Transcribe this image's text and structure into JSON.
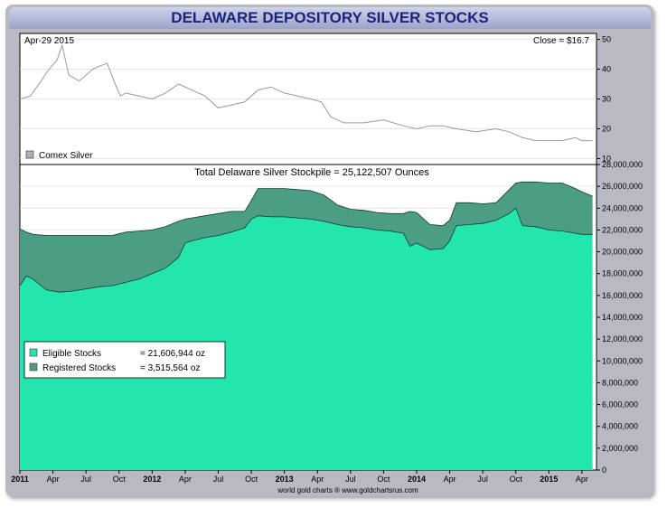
{
  "header": {
    "title": "DELAWARE DEPOSITORY SILVER STOCKS"
  },
  "chart_data": [
    {
      "type": "line",
      "title": "",
      "series": [
        {
          "name": "Comex Silver",
          "color": "#9a9a9a",
          "x": [
            2011.0,
            2011.08,
            2011.16,
            2011.22,
            2011.28,
            2011.32,
            2011.37,
            2011.45,
            2011.55,
            2011.6,
            2011.66,
            2011.72,
            2011.76,
            2011.8,
            2011.9,
            2012.0,
            2012.1,
            2012.2,
            2012.3,
            2012.4,
            2012.5,
            2012.6,
            2012.7,
            2012.8,
            2012.9,
            2013.0,
            2013.1,
            2013.2,
            2013.28,
            2013.35,
            2013.45,
            2013.6,
            2013.75,
            2013.9,
            2014.0,
            2014.1,
            2014.2,
            2014.3,
            2014.45,
            2014.6,
            2014.7,
            2014.8,
            2014.9,
            2015.0,
            2015.1,
            2015.2,
            2015.25,
            2015.33
          ],
          "values": [
            30,
            31,
            36,
            40,
            43,
            48,
            38,
            36,
            40,
            41,
            42,
            35,
            31,
            32,
            31,
            30,
            32,
            35,
            33,
            31,
            27,
            28,
            29,
            33,
            34,
            32,
            31,
            30,
            29,
            24,
            22,
            22,
            23,
            21,
            20,
            21,
            21,
            20,
            19,
            20,
            19,
            17,
            16,
            16,
            16,
            17,
            16,
            16
          ]
        }
      ],
      "ylim": [
        8,
        52
      ],
      "yticks": [
        10,
        20,
        30,
        40,
        50
      ],
      "annotations": {
        "date_label": "Apr-29  2015",
        "close_label": "Close = $16.7"
      },
      "legend": {
        "label": "Comex Silver",
        "position": "bottom-left"
      }
    },
    {
      "type": "area",
      "title": "Total Delaware Silver Stockpile = 25,122,507 Ounces",
      "x": [
        2011.0,
        2011.05,
        2011.1,
        2011.2,
        2011.3,
        2011.4,
        2011.5,
        2011.6,
        2011.7,
        2011.8,
        2011.9,
        2012.0,
        2012.1,
        2012.2,
        2012.25,
        2012.3,
        2012.4,
        2012.5,
        2012.6,
        2012.7,
        2012.75,
        2012.8,
        2012.9,
        2013.0,
        2013.1,
        2013.2,
        2013.3,
        2013.4,
        2013.5,
        2013.6,
        2013.7,
        2013.8,
        2013.9,
        2013.95,
        2014.0,
        2014.1,
        2014.2,
        2014.25,
        2014.3,
        2014.4,
        2014.5,
        2014.6,
        2014.7,
        2014.75,
        2014.8,
        2014.9,
        2015.0,
        2015.1,
        2015.2,
        2015.25,
        2015.33
      ],
      "series": [
        {
          "name": "Eligible Stocks",
          "color": "#22e6ae",
          "values": [
            16.9,
            17.8,
            17.5,
            16.5,
            16.3,
            16.4,
            16.6,
            16.8,
            16.9,
            17.2,
            17.5,
            18.0,
            18.5,
            19.5,
            20.8,
            21.0,
            21.3,
            21.5,
            21.8,
            22.2,
            23.0,
            23.3,
            23.2,
            23.2,
            23.1,
            23.0,
            22.8,
            22.5,
            22.3,
            22.2,
            22.0,
            21.9,
            21.7,
            20.5,
            20.8,
            20.2,
            20.3,
            21.0,
            22.4,
            22.5,
            22.6,
            22.9,
            23.5,
            24.0,
            22.4,
            22.3,
            22.0,
            21.9,
            21.7,
            21.6,
            21.6
          ]
        },
        {
          "name": "Registered Stocks",
          "color": "#4b9e84",
          "values": [
            5.2,
            4.0,
            4.1,
            5.0,
            5.2,
            5.1,
            4.9,
            4.7,
            4.6,
            4.6,
            4.4,
            4.0,
            3.8,
            3.3,
            2.2,
            2.1,
            2.0,
            2.0,
            1.9,
            1.5,
            1.7,
            2.5,
            2.6,
            2.6,
            2.6,
            2.6,
            2.4,
            1.8,
            1.6,
            1.6,
            1.6,
            1.6,
            1.8,
            3.2,
            2.8,
            2.3,
            2.1,
            1.9,
            2.1,
            2.0,
            1.8,
            1.6,
            2.2,
            2.3,
            4.0,
            4.1,
            4.3,
            4.4,
            4.1,
            3.9,
            3.5
          ]
        }
      ],
      "ylim": [
        0,
        28
      ],
      "yticks": [
        "0",
        "2,000,000",
        "4,000,000",
        "6,000,000",
        "8,000,000",
        "10,000,000",
        "12,000,000",
        "14,000,000",
        "16,000,000",
        "18,000,000",
        "20,000,000",
        "22,000,000",
        "24,000,000",
        "26,000,000",
        "28,000,000"
      ],
      "yunit": "millions",
      "legend": {
        "position": "center-left",
        "entries": [
          {
            "label": "Eligible Stocks",
            "value": "= 21,606,944 oz"
          },
          {
            "label": "Registered Stocks",
            "value": "= 3,515,564 oz"
          }
        ]
      }
    }
  ],
  "x_axis": {
    "range": [
      2011.0,
      2015.36
    ],
    "ticks": [
      {
        "label": "2011",
        "x": 2011.0,
        "bold": true
      },
      {
        "label": "Apr",
        "x": 2011.25,
        "bold": false
      },
      {
        "label": "Jul",
        "x": 2011.5,
        "bold": false
      },
      {
        "label": "Oct",
        "x": 2011.75,
        "bold": false
      },
      {
        "label": "2012",
        "x": 2012.0,
        "bold": true
      },
      {
        "label": "Apr",
        "x": 2012.25,
        "bold": false
      },
      {
        "label": "Jul",
        "x": 2012.5,
        "bold": false
      },
      {
        "label": "Oct",
        "x": 2012.75,
        "bold": false
      },
      {
        "label": "2013",
        "x": 2013.0,
        "bold": true
      },
      {
        "label": "Apr",
        "x": 2013.25,
        "bold": false
      },
      {
        "label": "Jul",
        "x": 2013.5,
        "bold": false
      },
      {
        "label": "Oct",
        "x": 2013.75,
        "bold": false
      },
      {
        "label": "2014",
        "x": 2014.0,
        "bold": true
      },
      {
        "label": "Apr",
        "x": 2014.25,
        "bold": false
      },
      {
        "label": "Jul",
        "x": 2014.5,
        "bold": false
      },
      {
        "label": "Oct",
        "x": 2014.75,
        "bold": false
      },
      {
        "label": "2015",
        "x": 2015.0,
        "bold": true
      },
      {
        "label": "Apr",
        "x": 2015.25,
        "bold": false
      }
    ]
  },
  "footer": {
    "credit": "world gold charts ® www.goldchartsrus.com"
  }
}
